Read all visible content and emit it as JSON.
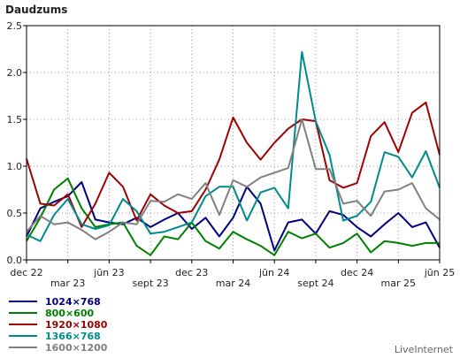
{
  "chart_data": {
    "type": "line",
    "title": "Daudzums",
    "xlabel": "",
    "ylabel": "",
    "ylim": [
      0,
      2.5
    ],
    "yticks": [
      "0.0",
      "0.5",
      "1.0",
      "1.5",
      "2.0",
      "2.5"
    ],
    "xticks": [
      {
        "label": "dec 22",
        "index": 0
      },
      {
        "label": "mar 23",
        "index": 3
      },
      {
        "label": "jūn 23",
        "index": 6
      },
      {
        "label": "sept 23",
        "index": 9
      },
      {
        "label": "dec 23",
        "index": 12
      },
      {
        "label": "mar 24",
        "index": 15
      },
      {
        "label": "jūn 24",
        "index": 18
      },
      {
        "label": "sept 24",
        "index": 21
      },
      {
        "label": "dec 24",
        "index": 24
      },
      {
        "label": "mar 25",
        "index": 27
      },
      {
        "label": "jūn 25",
        "index": 30
      }
    ],
    "x": [
      "dec 22",
      "jan 23",
      "feb 23",
      "mar 23",
      "apr 23",
      "mai 23",
      "jūn 23",
      "jūl 23",
      "aug 23",
      "sept 23",
      "okt 23",
      "nov 23",
      "dec 23",
      "jan 24",
      "feb 24",
      "mar 24",
      "apr 24",
      "mai 24",
      "jūn 24",
      "jūl 24",
      "aug 24",
      "sept 24",
      "okt 24",
      "nov 24",
      "dec 24",
      "jan 25",
      "feb 25",
      "mar 25",
      "apr 25",
      "mai 25",
      "jūn 25"
    ],
    "grid": true,
    "legend_position": "bottom-left",
    "series": [
      {
        "name": "1024×768",
        "color": "#000080",
        "values": [
          0.25,
          0.55,
          0.62,
          0.68,
          0.83,
          0.43,
          0.4,
          0.38,
          0.45,
          0.35,
          0.43,
          0.5,
          0.33,
          0.45,
          0.25,
          0.45,
          0.78,
          0.6,
          0.1,
          0.4,
          0.43,
          0.28,
          0.52,
          0.48,
          0.35,
          0.25,
          0.38,
          0.5,
          0.35,
          0.4,
          0.13
        ]
      },
      {
        "name": "800×600",
        "color": "#008000",
        "values": [
          0.2,
          0.45,
          0.75,
          0.87,
          0.55,
          0.35,
          0.38,
          0.4,
          0.15,
          0.05,
          0.25,
          0.22,
          0.4,
          0.2,
          0.12,
          0.3,
          0.22,
          0.15,
          0.05,
          0.3,
          0.23,
          0.28,
          0.13,
          0.18,
          0.28,
          0.08,
          0.2,
          0.18,
          0.15,
          0.18,
          0.18
        ]
      },
      {
        "name": "1920×1080",
        "color": "#a00000",
        "values": [
          1.08,
          0.6,
          0.58,
          0.7,
          0.35,
          0.6,
          0.93,
          0.78,
          0.42,
          0.7,
          0.58,
          0.5,
          0.52,
          0.75,
          1.07,
          1.52,
          1.25,
          1.07,
          1.25,
          1.4,
          1.5,
          1.48,
          0.85,
          0.77,
          0.82,
          1.32,
          1.47,
          1.15,
          1.57,
          1.68,
          1.12
        ]
      },
      {
        "name": "1366×768",
        "color": "#008b8b",
        "values": [
          0.27,
          0.2,
          0.48,
          0.65,
          0.38,
          0.33,
          0.37,
          0.65,
          0.52,
          0.28,
          0.3,
          0.35,
          0.4,
          0.68,
          0.78,
          0.78,
          0.42,
          0.72,
          0.77,
          0.55,
          2.22,
          1.48,
          1.12,
          0.42,
          0.47,
          0.62,
          1.15,
          1.1,
          0.88,
          1.16,
          0.77
        ]
      },
      {
        "name": "1600×1200",
        "color": "#808080",
        "values": [
          0.3,
          0.47,
          0.38,
          0.4,
          0.32,
          0.22,
          0.3,
          0.4,
          0.38,
          0.63,
          0.62,
          0.7,
          0.65,
          0.82,
          0.48,
          0.85,
          0.78,
          0.88,
          0.93,
          0.98,
          1.5,
          0.97,
          0.97,
          0.6,
          0.63,
          0.47,
          0.73,
          0.75,
          0.82,
          0.55,
          0.43
        ]
      }
    ]
  },
  "credit": "LiveInternet"
}
